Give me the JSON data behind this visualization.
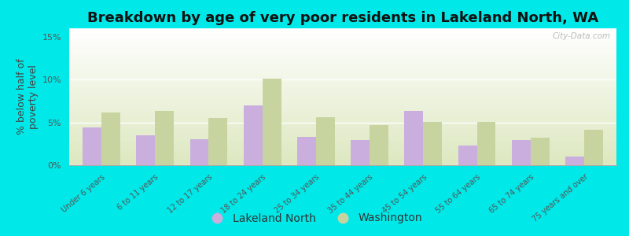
{
  "title": "Breakdown by age of very poor residents in Lakeland North, WA",
  "ylabel": "% below half of\npoverty level",
  "categories": [
    "Under 6 years",
    "6 to 11 years",
    "12 to 17 years",
    "18 to 24 years",
    "25 to 34 years",
    "35 to 44 years",
    "45 to 54 years",
    "55 to 64 years",
    "65 to 74 years",
    "75 years and over"
  ],
  "lakeland_values": [
    4.4,
    3.5,
    3.0,
    7.0,
    3.3,
    2.9,
    6.3,
    2.3,
    2.9,
    1.0
  ],
  "washington_values": [
    6.2,
    6.3,
    5.5,
    10.1,
    5.6,
    4.7,
    5.1,
    5.1,
    3.2,
    4.1
  ],
  "lakeland_color": "#c9aede",
  "washington_color": "#c8d4a0",
  "ylim": [
    0,
    16
  ],
  "yticks": [
    0,
    5,
    10,
    15
  ],
  "ytick_labels": [
    "0%",
    "5%",
    "10%",
    "15%"
  ],
  "background_outer": "#00e8e8",
  "background_plot_bottom": "#dde8c0",
  "background_plot_top": "#ffffff",
  "title_fontsize": 13,
  "axis_label_fontsize": 9,
  "tick_fontsize": 8,
  "legend_fontsize": 10,
  "bar_width": 0.35,
  "watermark": "City-Data.com"
}
